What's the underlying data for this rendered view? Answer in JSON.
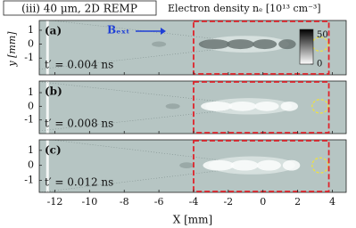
{
  "title": "(iii) 40 μm, 2D REMP",
  "colorbar_label": "Electron density nₑ [10¹³ cm⁻³]",
  "x_label": "X [mm]",
  "y_label": "y [mm]",
  "chart_data": [
    {
      "type": "image",
      "panel_label": "(a)",
      "annotation": "t′ = 0.004 ns",
      "field_label": "Bₑₓₜ",
      "xlim": [
        -12.9,
        4.8
      ],
      "ylim": [
        -2.2,
        1.7
      ],
      "xticks": [
        -12,
        -10,
        -8,
        -6,
        -4,
        -2,
        0,
        2,
        4
      ],
      "yticks": [
        -1,
        0,
        1
      ],
      "highlight_xlim": [
        -4,
        3.8
      ],
      "highlight_color": "#e0242b",
      "colorbar": {
        "clim": [
          0,
          60
        ],
        "ticks": [
          0,
          50
        ]
      }
    },
    {
      "type": "image",
      "panel_label": "(b)",
      "annotation": "t′ = 0.008 ns",
      "xlim": [
        -12.9,
        4.8
      ],
      "ylim": [
        -2,
        1.85
      ],
      "xticks": [
        -12,
        -10,
        -8,
        -6,
        -4,
        -2,
        0,
        2,
        4
      ],
      "yticks": [
        -1,
        0,
        1
      ],
      "highlight_xlim": [
        -4,
        3.8
      ],
      "highlight_color": "#e0242b"
    },
    {
      "type": "image",
      "panel_label": "(c)",
      "annotation": "t′ = 0.012 ns",
      "xlim": [
        -12.9,
        4.8
      ],
      "ylim": [
        -1.8,
        1.7
      ],
      "xticks": [
        -12,
        -10,
        -8,
        -6,
        -4,
        -2,
        0,
        2,
        4
      ],
      "yticks": [
        -1,
        0,
        1
      ],
      "highlight_xlim": [
        -4,
        3.8
      ],
      "highlight_color": "#e0242b",
      "show_xtick_labels": true
    }
  ]
}
